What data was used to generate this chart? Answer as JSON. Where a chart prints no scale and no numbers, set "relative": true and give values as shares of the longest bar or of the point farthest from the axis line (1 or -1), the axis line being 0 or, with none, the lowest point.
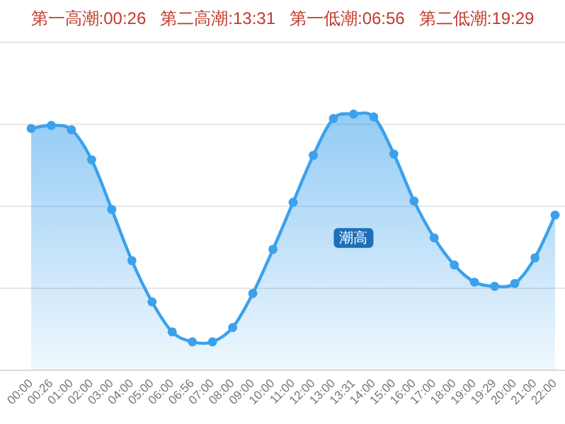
{
  "chart_data": {
    "type": "area",
    "title": "第一高潮:00:26   第二高潮:13:31   第一低潮:06:56   第二低潮:19:29",
    "categories": [
      "00:00",
      "00:26",
      "01:00",
      "02:00",
      "03:00",
      "04:00",
      "05:00",
      "06:00",
      "06:56",
      "07:00",
      "08:00",
      "09:00",
      "10:00",
      "11:00",
      "12:00",
      "13:00",
      "13:31",
      "14:00",
      "15:00",
      "16:00",
      "17:00",
      "18:00",
      "19:00",
      "19:29",
      "20:00",
      "21:00",
      "22:00"
    ],
    "relative": true,
    "grid": "y",
    "marker": "circle",
    "line_style": "solid",
    "legend": false,
    "series": [
      {
        "name": "潮高",
        "color": "#3ba1ec",
        "values": [
          0.944,
          0.956,
          0.939,
          0.822,
          0.628,
          0.428,
          0.267,
          0.15,
          0.111,
          0.111,
          0.167,
          0.3,
          0.472,
          0.656,
          0.839,
          0.983,
          1,
          0.989,
          0.844,
          0.661,
          0.517,
          0.411,
          0.344,
          0.328,
          0.339,
          0.439,
          0.606
        ]
      }
    ]
  }
}
